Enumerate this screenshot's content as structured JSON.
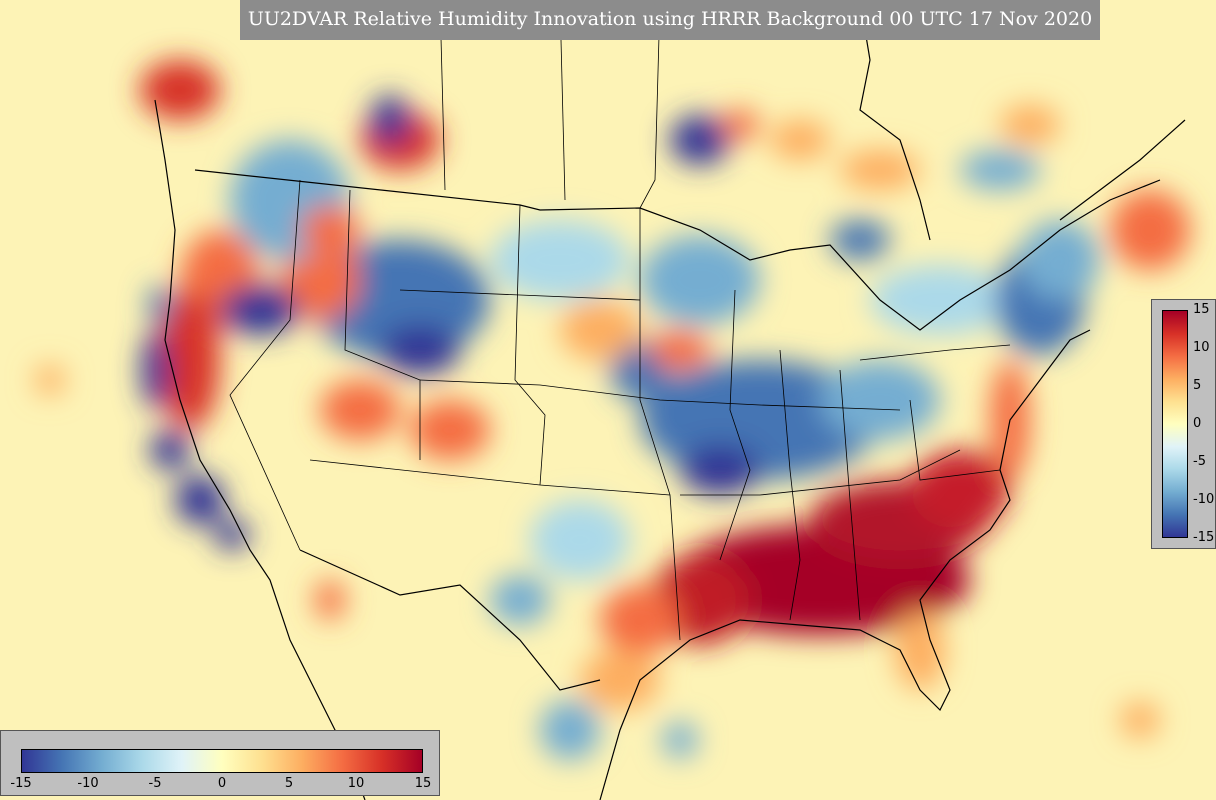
{
  "title": "UU2DVAR Relative Humidity Innovation using HRRR Background 00 UTC 17 Nov 2020",
  "colorbar": {
    "min": -15,
    "max": 15,
    "colors": [
      "#313695",
      "#4575b4",
      "#74add1",
      "#abd9e9",
      "#e0f3f8",
      "#ffffbf",
      "#fee090",
      "#fdae61",
      "#f46d43",
      "#d73027",
      "#a50026"
    ],
    "right_ticks": [
      "15",
      "10",
      "5",
      "0",
      "-5",
      "-10",
      "-15"
    ],
    "bottom_ticks": [
      "-15",
      "-10",
      "-5",
      "0",
      "5",
      "10",
      "15"
    ]
  },
  "map": {
    "background_color": "#fdf3b6",
    "field_value_range": [
      -15,
      15
    ]
  }
}
